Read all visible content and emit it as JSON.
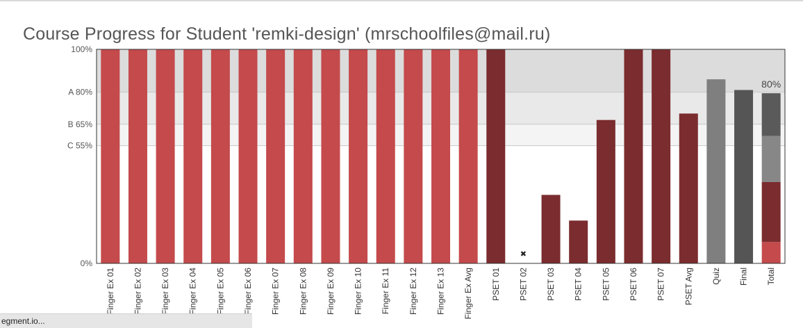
{
  "title": "Course Progress for Student 'remki-design' (mrschoolfiles@mail.ru)",
  "status_bar": {
    "text": "egment.io..."
  },
  "colors": {
    "finger_ex": "#c44a4c",
    "pset": "#7b2c2e",
    "quiz": "#7f7f7f",
    "final": "#555555",
    "band_100_80": "#dcdcdc",
    "band_80_65": "#e9e9e9",
    "band_65_55": "#f4f4f4",
    "total_finger": "#c44a4c",
    "total_pset": "#7b2c2e",
    "total_quiz": "#878787",
    "total_final": "#5a5a5a"
  },
  "chart_data": {
    "type": "bar",
    "ylim": [
      0,
      100
    ],
    "y_ticks": [
      {
        "value": 0,
        "label": "0%"
      },
      {
        "value": 55,
        "label": "C 55%"
      },
      {
        "value": 65,
        "label": "B 65%"
      },
      {
        "value": 80,
        "label": "A 80%"
      },
      {
        "value": 100,
        "label": "100%"
      }
    ],
    "grade_bands": [
      {
        "from": 80,
        "to": 100,
        "color_key": "band_100_80"
      },
      {
        "from": 65,
        "to": 80,
        "color_key": "band_80_65"
      },
      {
        "from": 55,
        "to": 65,
        "color_key": "band_65_55"
      }
    ],
    "categories": [
      "Finger Ex 01",
      "Finger Ex 02",
      "Finger Ex 03",
      "Finger Ex 04",
      "Finger Ex 05",
      "Finger Ex 06",
      "Finger Ex 07",
      "Finger Ex 08",
      "Finger Ex 09",
      "Finger Ex 10",
      "Finger Ex 11",
      "Finger Ex 12",
      "Finger Ex 13",
      "Finger Ex Avg",
      "PSET 01",
      "PSET 02",
      "PSET 03",
      "PSET 04",
      "PSET 05",
      "PSET 06",
      "PSET 07",
      "PSET Avg",
      "Quiz",
      "Final",
      "Total"
    ],
    "bars": [
      {
        "label": "Finger Ex 01",
        "value": 100,
        "color_key": "finger_ex"
      },
      {
        "label": "Finger Ex 02",
        "value": 100,
        "color_key": "finger_ex"
      },
      {
        "label": "Finger Ex 03",
        "value": 100,
        "color_key": "finger_ex"
      },
      {
        "label": "Finger Ex 04",
        "value": 100,
        "color_key": "finger_ex"
      },
      {
        "label": "Finger Ex 05",
        "value": 100,
        "color_key": "finger_ex"
      },
      {
        "label": "Finger Ex 06",
        "value": 100,
        "color_key": "finger_ex"
      },
      {
        "label": "Finger Ex 07",
        "value": 100,
        "color_key": "finger_ex"
      },
      {
        "label": "Finger Ex 08",
        "value": 100,
        "color_key": "finger_ex"
      },
      {
        "label": "Finger Ex 09",
        "value": 100,
        "color_key": "finger_ex"
      },
      {
        "label": "Finger Ex 10",
        "value": 100,
        "color_key": "finger_ex"
      },
      {
        "label": "Finger Ex 11",
        "value": 100,
        "color_key": "finger_ex"
      },
      {
        "label": "Finger Ex 12",
        "value": 100,
        "color_key": "finger_ex"
      },
      {
        "label": "Finger Ex 13",
        "value": 100,
        "color_key": "finger_ex"
      },
      {
        "label": "Finger Ex Avg",
        "value": 100,
        "color_key": "finger_ex"
      },
      {
        "label": "PSET 01",
        "value": 100,
        "color_key": "pset"
      },
      {
        "label": "PSET 02",
        "value": 0,
        "color_key": "pset",
        "marker": "✖"
      },
      {
        "label": "PSET 03",
        "value": 32,
        "color_key": "pset"
      },
      {
        "label": "PSET 04",
        "value": 20,
        "color_key": "pset"
      },
      {
        "label": "PSET 05",
        "value": 67,
        "color_key": "pset"
      },
      {
        "label": "PSET 06",
        "value": 100,
        "color_key": "pset"
      },
      {
        "label": "PSET 07",
        "value": 100,
        "color_key": "pset"
      },
      {
        "label": "PSET Avg",
        "value": 70,
        "color_key": "pset"
      },
      {
        "label": "Quiz",
        "value": 86,
        "color_key": "quiz"
      },
      {
        "label": "Final",
        "value": 81,
        "color_key": "final"
      }
    ],
    "total": {
      "label": "Total",
      "value_label": "80%",
      "segments": [
        {
          "value": 10,
          "color_key": "total_finger"
        },
        {
          "value": 28,
          "color_key": "total_pset"
        },
        {
          "value": 21.5,
          "color_key": "total_quiz"
        },
        {
          "value": 20,
          "color_key": "total_final"
        }
      ]
    }
  }
}
